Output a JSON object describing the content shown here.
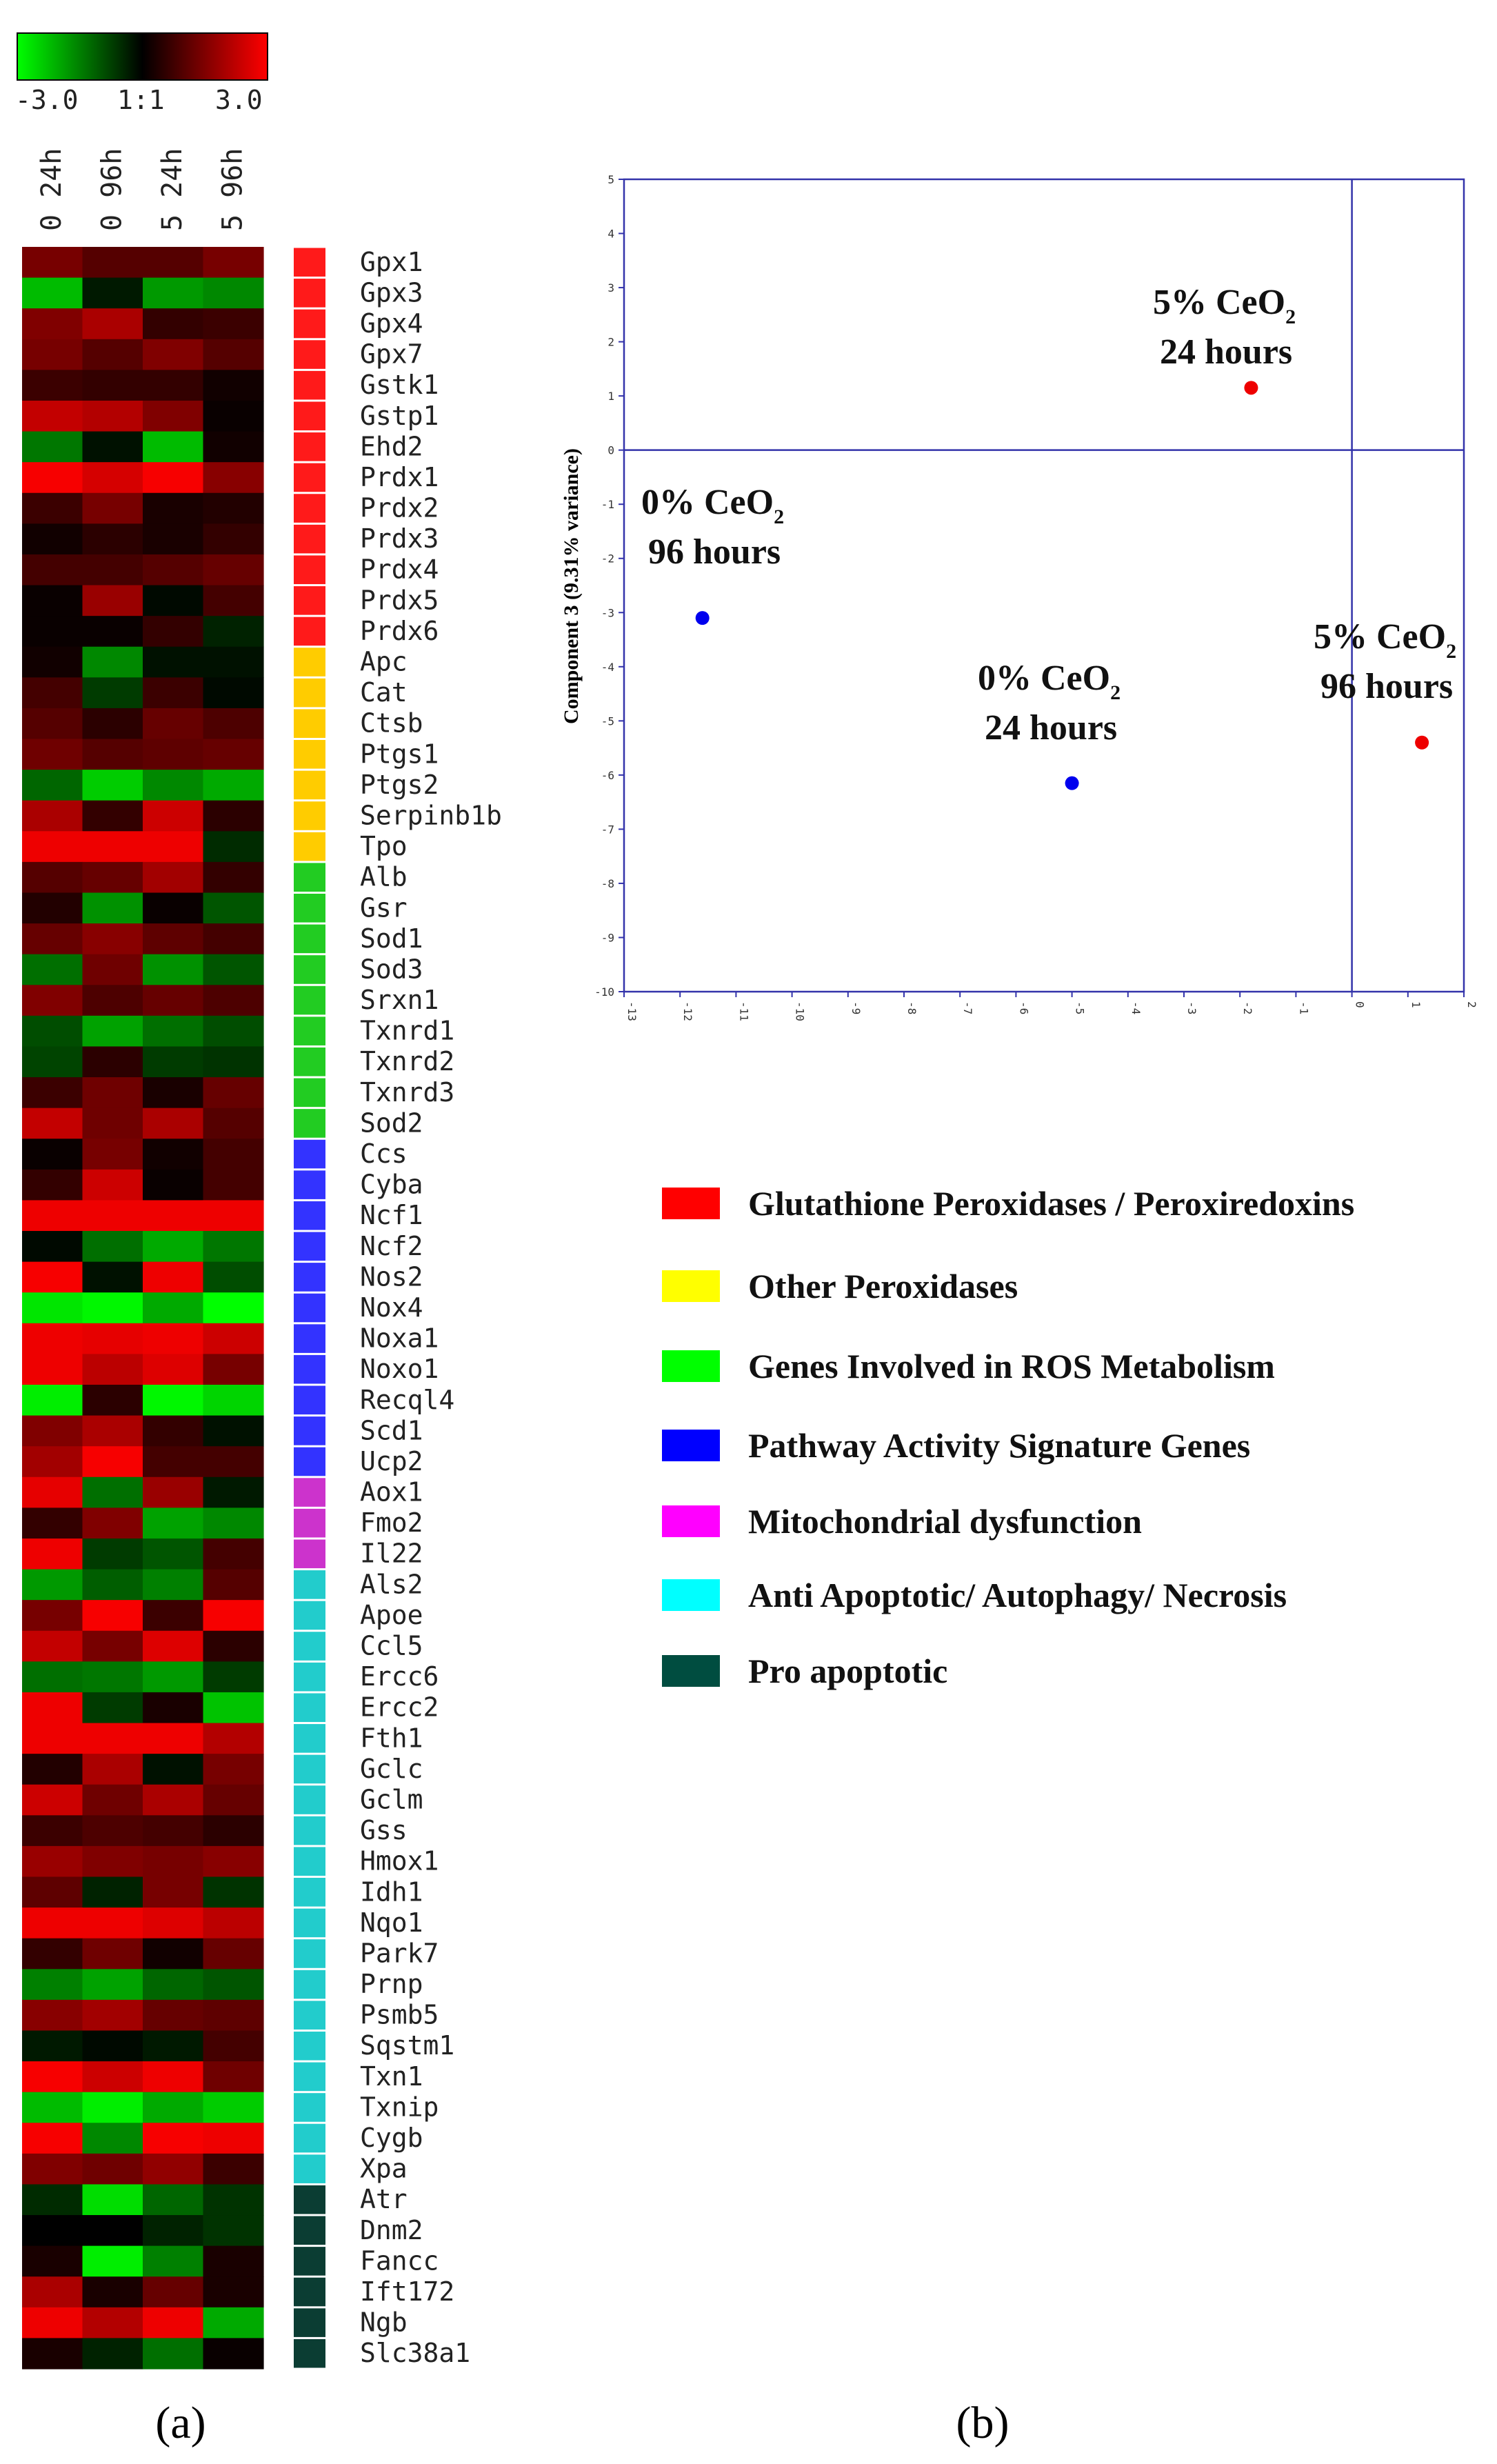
{
  "panel_labels": {
    "a": "(a)",
    "b": "(b)"
  },
  "colors": {
    "low": "#00ff00",
    "mid": "#000000",
    "high": "#ff0000",
    "categories": {
      "gpx": "#ff1a1a",
      "other_perox": "#ffcc00",
      "ros": "#22cc22",
      "pathway": "#3333ff",
      "mito": "#cc33cc",
      "anti": "#22cccc",
      "pro": "#0b3d33"
    },
    "legend": {
      "gpx": "#ff0000",
      "other_perox": "#ffff00",
      "ros": "#00ff00",
      "pathway": "#0000ff",
      "mito": "#ff00ff",
      "anti": "#00ffff",
      "pro": "#004d40"
    },
    "point_red": "#ee0000",
    "point_blue": "#0000ee",
    "axis": "#3333aa"
  },
  "chart_data": [
    {
      "type": "heatmap",
      "title": "",
      "colorbar": {
        "min_label": "-3.0",
        "mid_label": "1:1",
        "max_label": "3.0",
        "range": [
          -3.0,
          3.0
        ]
      },
      "columns": [
        "0 24h",
        "0 96h",
        "5 24h",
        "5 96h"
      ],
      "rows": [
        {
          "gene": "Gpx1",
          "cat": "gpx",
          "values": [
            1.4,
            1.0,
            1.0,
            1.4
          ]
        },
        {
          "gene": "Gpx3",
          "cat": "gpx",
          "values": [
            -2.2,
            -0.3,
            -1.8,
            -1.6
          ]
        },
        {
          "gene": "Gpx4",
          "cat": "gpx",
          "values": [
            1.5,
            2.0,
            0.6,
            0.7
          ]
        },
        {
          "gene": "Gpx7",
          "cat": "gpx",
          "values": [
            1.4,
            1.0,
            1.5,
            1.0
          ]
        },
        {
          "gene": "Gstk1",
          "cat": "gpx",
          "values": [
            0.7,
            0.6,
            0.6,
            0.2
          ]
        },
        {
          "gene": "Gstp1",
          "cat": "gpx",
          "values": [
            2.3,
            2.1,
            1.5,
            0.1
          ]
        },
        {
          "gene": "Ehd2",
          "cat": "gpx",
          "values": [
            -1.4,
            -0.2,
            -2.2,
            0.2
          ]
        },
        {
          "gene": "Prdx1",
          "cat": "gpx",
          "values": [
            2.9,
            2.5,
            2.9,
            1.6
          ]
        },
        {
          "gene": "Prdx2",
          "cat": "gpx",
          "values": [
            0.7,
            1.4,
            0.3,
            0.4
          ]
        },
        {
          "gene": "Prdx3",
          "cat": "gpx",
          "values": [
            0.2,
            0.5,
            0.3,
            0.6
          ]
        },
        {
          "gene": "Prdx4",
          "cat": "gpx",
          "values": [
            0.8,
            0.8,
            1.0,
            1.2
          ]
        },
        {
          "gene": "Prdx5",
          "cat": "gpx",
          "values": [
            0.1,
            1.8,
            -0.1,
            0.8
          ]
        },
        {
          "gene": "Prdx6",
          "cat": "gpx",
          "values": [
            0.1,
            0.1,
            0.6,
            -0.4
          ]
        },
        {
          "gene": "Apc",
          "cat": "other_perox",
          "values": [
            0.2,
            -1.6,
            -0.2,
            -0.2
          ]
        },
        {
          "gene": "Cat",
          "cat": "other_perox",
          "values": [
            0.8,
            -0.7,
            0.7,
            -0.1
          ]
        },
        {
          "gene": "Ctsb",
          "cat": "other_perox",
          "values": [
            1.0,
            0.5,
            1.2,
            0.9
          ]
        },
        {
          "gene": "Ptgs1",
          "cat": "other_perox",
          "values": [
            1.3,
            1.0,
            1.1,
            1.2
          ]
        },
        {
          "gene": "Ptgs2",
          "cat": "other_perox",
          "values": [
            -1.2,
            -2.4,
            -1.6,
            -2.0
          ]
        },
        {
          "gene": "Serpinb1b",
          "cat": "other_perox",
          "values": [
            2.0,
            0.6,
            2.4,
            0.5
          ]
        },
        {
          "gene": "Tpo",
          "cat": "other_perox",
          "values": [
            2.8,
            2.8,
            2.8,
            -0.5
          ]
        },
        {
          "gene": "Alb",
          "cat": "ros",
          "values": [
            1.0,
            1.2,
            1.9,
            0.6
          ]
        },
        {
          "gene": "Gsr",
          "cat": "ros",
          "values": [
            0.4,
            -1.7,
            0.1,
            -1.0
          ]
        },
        {
          "gene": "Sod1",
          "cat": "ros",
          "values": [
            1.2,
            1.6,
            1.1,
            0.8
          ]
        },
        {
          "gene": "Sod3",
          "cat": "ros",
          "values": [
            -1.3,
            1.3,
            -1.7,
            -1.0
          ]
        },
        {
          "gene": "Srxn1",
          "cat": "ros",
          "values": [
            1.5,
            0.9,
            1.2,
            0.9
          ]
        },
        {
          "gene": "Txnrd1",
          "cat": "ros",
          "values": [
            -0.9,
            -1.9,
            -1.3,
            -0.9
          ]
        },
        {
          "gene": "Txnrd2",
          "cat": "ros",
          "values": [
            -0.8,
            0.5,
            -0.7,
            -0.6
          ]
        },
        {
          "gene": "Txnrd3",
          "cat": "ros",
          "values": [
            0.7,
            1.3,
            0.3,
            1.2
          ]
        },
        {
          "gene": "Sod2",
          "cat": "ros",
          "values": [
            2.3,
            1.3,
            2.0,
            1.0
          ]
        },
        {
          "gene": "Ccs",
          "cat": "pathway",
          "values": [
            0.1,
            1.4,
            0.2,
            0.8
          ]
        },
        {
          "gene": "Cyba",
          "cat": "pathway",
          "values": [
            0.6,
            2.4,
            0.1,
            0.8
          ]
        },
        {
          "gene": "Ncf1",
          "cat": "pathway",
          "values": [
            2.8,
            2.8,
            2.8,
            2.8
          ]
        },
        {
          "gene": "Ncf2",
          "cat": "pathway",
          "values": [
            -0.1,
            -1.3,
            -2.0,
            -1.4
          ]
        },
        {
          "gene": "Nos2",
          "cat": "pathway",
          "values": [
            2.9,
            -0.2,
            2.8,
            -0.9
          ]
        },
        {
          "gene": "Nox4",
          "cat": "pathway",
          "values": [
            -2.7,
            -2.9,
            -2.0,
            -3.0
          ]
        },
        {
          "gene": "Noxa1",
          "cat": "pathway",
          "values": [
            2.8,
            2.7,
            2.8,
            2.4
          ]
        },
        {
          "gene": "Noxo1",
          "cat": "pathway",
          "values": [
            2.8,
            2.2,
            2.6,
            1.4
          ]
        },
        {
          "gene": "Recql4",
          "cat": "pathway",
          "values": [
            -2.8,
            0.5,
            -2.9,
            -2.5
          ]
        },
        {
          "gene": "Scd1",
          "cat": "pathway",
          "values": [
            1.5,
            2.0,
            0.6,
            -0.2
          ]
        },
        {
          "gene": "Ucp2",
          "cat": "pathway",
          "values": [
            1.9,
            2.9,
            0.8,
            0.8
          ]
        },
        {
          "gene": "Aox1",
          "cat": "mito",
          "values": [
            2.7,
            -1.3,
            1.8,
            -0.3
          ]
        },
        {
          "gene": "Fmo2",
          "cat": "mito",
          "values": [
            0.6,
            1.5,
            -1.9,
            -1.6
          ]
        },
        {
          "gene": "Il22",
          "cat": "mito",
          "values": [
            2.8,
            -0.7,
            -1.0,
            0.8
          ]
        },
        {
          "gene": "Als2",
          "cat": "anti",
          "values": [
            -1.8,
            -1.1,
            -1.5,
            1.0
          ]
        },
        {
          "gene": "Apoe",
          "cat": "anti",
          "values": [
            1.4,
            2.9,
            0.7,
            2.9
          ]
        },
        {
          "gene": "Ccl5",
          "cat": "anti",
          "values": [
            2.3,
            1.4,
            2.6,
            0.5
          ]
        },
        {
          "gene": "Ercc6",
          "cat": "anti",
          "values": [
            -1.3,
            -1.4,
            -1.8,
            -0.7
          ]
        },
        {
          "gene": "Ercc2",
          "cat": "anti",
          "values": [
            2.8,
            -0.7,
            0.3,
            -2.3
          ]
        },
        {
          "gene": "Fth1",
          "cat": "anti",
          "values": [
            2.8,
            2.8,
            2.8,
            2.1
          ]
        },
        {
          "gene": "Gclc",
          "cat": "anti",
          "values": [
            0.4,
            2.0,
            -0.2,
            1.4
          ]
        },
        {
          "gene": "Gclm",
          "cat": "anti",
          "values": [
            2.4,
            1.3,
            2.0,
            1.2
          ]
        },
        {
          "gene": "Gss",
          "cat": "anti",
          "values": [
            0.7,
            0.9,
            0.8,
            0.5
          ]
        },
        {
          "gene": "Hmox1",
          "cat": "anti",
          "values": [
            1.8,
            1.5,
            1.4,
            1.6
          ]
        },
        {
          "gene": "Idh1",
          "cat": "anti",
          "values": [
            1.1,
            -0.4,
            1.4,
            -0.6
          ]
        },
        {
          "gene": "Nqo1",
          "cat": "anti",
          "values": [
            2.8,
            2.8,
            2.6,
            2.2
          ]
        },
        {
          "gene": "Park7",
          "cat": "anti",
          "values": [
            0.6,
            1.3,
            0.2,
            1.2
          ]
        },
        {
          "gene": "Prnp",
          "cat": "anti",
          "values": [
            -1.5,
            -1.9,
            -1.2,
            -1.0
          ]
        },
        {
          "gene": "Psmb5",
          "cat": "anti",
          "values": [
            1.6,
            1.9,
            1.2,
            1.1
          ]
        },
        {
          "gene": "Sqstm1",
          "cat": "anti",
          "values": [
            -0.3,
            -0.1,
            -0.3,
            0.8
          ]
        },
        {
          "gene": "Txn1",
          "cat": "anti",
          "values": [
            2.9,
            2.4,
            2.8,
            1.3
          ]
        },
        {
          "gene": "Txnip",
          "cat": "anti",
          "values": [
            -2.2,
            -2.8,
            -2.0,
            -2.4
          ]
        },
        {
          "gene": "Cygb",
          "cat": "anti",
          "values": [
            2.9,
            -1.6,
            2.9,
            2.8
          ]
        },
        {
          "gene": "Xpa",
          "cat": "anti",
          "values": [
            1.5,
            1.3,
            1.7,
            0.7
          ]
        },
        {
          "gene": "Atr",
          "cat": "pro",
          "values": [
            -0.5,
            -2.6,
            -1.2,
            -0.6
          ]
        },
        {
          "gene": "Dnm2",
          "cat": "pro",
          "values": [
            0.0,
            0.0,
            -0.4,
            -0.6
          ]
        },
        {
          "gene": "Fancc",
          "cat": "pro",
          "values": [
            0.3,
            -2.8,
            -1.5,
            0.3
          ]
        },
        {
          "gene": "Ift172",
          "cat": "pro",
          "values": [
            2.0,
            0.3,
            1.2,
            0.3
          ]
        },
        {
          "gene": "Ngb",
          "cat": "pro",
          "values": [
            2.8,
            2.1,
            2.8,
            -2.0
          ]
        },
        {
          "gene": "Slc38a1",
          "cat": "pro",
          "values": [
            0.3,
            -0.4,
            -1.3,
            0.1
          ]
        }
      ]
    },
    {
      "type": "scatter",
      "title": "",
      "xlabel": "",
      "ylabel": "Component 3 (9.31% variance)",
      "xlim": [
        -13,
        2
      ],
      "ylim": [
        -10,
        5
      ],
      "xticks": [
        -13,
        -12,
        -11,
        -10,
        -9,
        -8,
        -7,
        -6,
        -5,
        -4,
        -3,
        -2,
        -1,
        0,
        1,
        2
      ],
      "yticks": [
        5,
        4,
        3,
        2,
        1,
        0,
        -1,
        -2,
        -3,
        -4,
        -5,
        -6,
        -7,
        -8,
        -9,
        -10
      ],
      "points": [
        {
          "x": -1.8,
          "y": 1.15,
          "color": "red",
          "label_line1": "5% CeO",
          "sub": "2",
          "label_line2": "24 hours"
        },
        {
          "x": -11.6,
          "y": -3.1,
          "color": "blue",
          "label_line1": "0% CeO",
          "sub": "2",
          "label_line2": "96 hours"
        },
        {
          "x": -5.0,
          "y": -6.15,
          "color": "blue",
          "label_line1": "0% CeO",
          "sub": "2",
          "label_line2": "24 hours"
        },
        {
          "x": 1.25,
          "y": -5.4,
          "color": "red",
          "label_line1": "5% CeO",
          "sub": "2",
          "label_line2": "96 hours"
        }
      ],
      "legend": [
        {
          "key": "gpx",
          "label": "Glutathione Peroxidases / Peroxiredoxins"
        },
        {
          "key": "other_perox",
          "label": "Other Peroxidases"
        },
        {
          "key": "ros",
          "label": "Genes Involved in ROS Metabolism"
        },
        {
          "key": "pathway",
          "label": "Pathway Activity Signature Genes"
        },
        {
          "key": "mito",
          "label": "Mitochondrial dysfunction"
        },
        {
          "key": "anti",
          "label": "Anti Apoptotic/ Autophagy/ Necrosis"
        },
        {
          "key": "pro",
          "label": "Pro apoptotic"
        }
      ]
    }
  ]
}
